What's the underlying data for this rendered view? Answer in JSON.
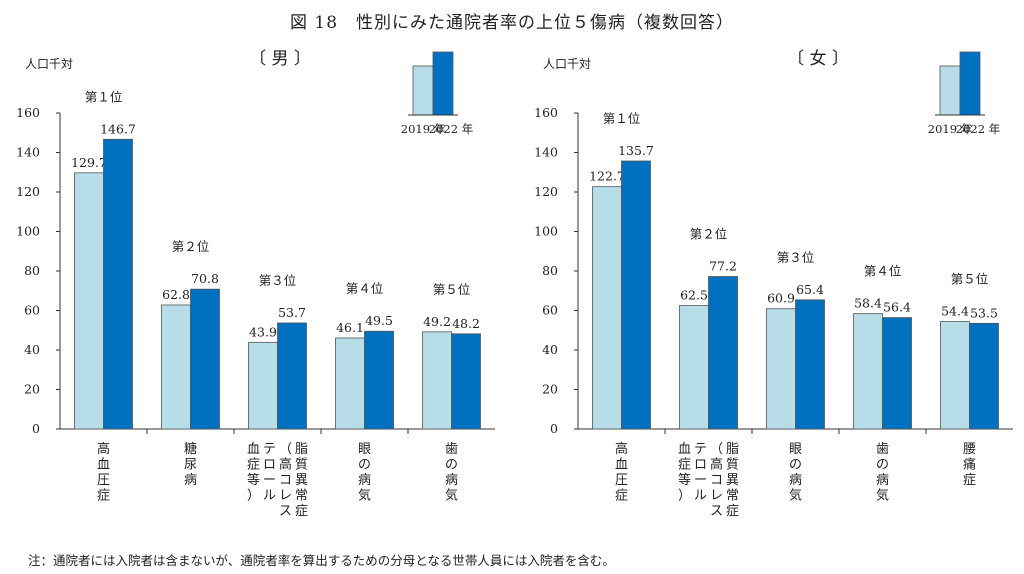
{
  "figure_title": "図 18　性別にみた通院者率の上位５傷病（複数回答）",
  "note": "注：通院者には入院者は含まないが、通院者率を算出するための分母となる世帯人員には入院者を含む。",
  "legend": {
    "series": [
      "2019 年",
      "2022 年"
    ]
  },
  "colors": {
    "y2019": "#b7dde8",
    "y2022": "#0070c0",
    "edge": "#555555"
  },
  "chart_data": [
    {
      "type": "bar",
      "title": "〔 男 〕",
      "ylabel": "人口千対",
      "ylim": [
        0,
        160
      ],
      "yticks": [
        0,
        20,
        40,
        60,
        80,
        100,
        120,
        140,
        160
      ],
      "categories": [
        "高血圧症",
        "糖尿病",
        "脂質異常症（高コレステロール血症等）",
        "眼の病気",
        "歯の病気"
      ],
      "category_label_lines": [
        [
          "高血圧症"
        ],
        [
          "糖尿病"
        ],
        [
          "脂質異常症",
          "（高コレス",
          "テロール",
          "血症等）"
        ],
        [
          "眼の病気"
        ],
        [
          "歯の病気"
        ]
      ],
      "ranks": [
        "第１位",
        "第２位",
        "第３位",
        "第４位",
        "第５位"
      ],
      "series": [
        {
          "name": "2019 年",
          "values": [
            129.7,
            62.8,
            43.9,
            46.1,
            49.2
          ]
        },
        {
          "name": "2022 年",
          "values": [
            146.7,
            70.8,
            53.7,
            49.5,
            48.2
          ]
        }
      ]
    },
    {
      "type": "bar",
      "title": "〔 女 〕",
      "ylabel": "人口千対",
      "ylim": [
        0,
        160
      ],
      "yticks": [
        0,
        20,
        40,
        60,
        80,
        100,
        120,
        140,
        160
      ],
      "categories": [
        "高血圧症",
        "脂質異常症（高コレステロール血症等）",
        "眼の病気",
        "歯の病気",
        "腰痛症"
      ],
      "category_label_lines": [
        [
          "高血圧症"
        ],
        [
          "脂質異常症",
          "（高コレス",
          "テロール",
          "血症等）"
        ],
        [
          "眼の病気"
        ],
        [
          "歯の病気"
        ],
        [
          "腰痛症"
        ]
      ],
      "ranks": [
        "第１位",
        "第２位",
        "第３位",
        "第４位",
        "第５位"
      ],
      "series": [
        {
          "name": "2019 年",
          "values": [
            122.7,
            62.5,
            60.9,
            58.4,
            54.4
          ]
        },
        {
          "name": "2022 年",
          "values": [
            135.7,
            77.2,
            65.4,
            56.4,
            53.5
          ]
        }
      ]
    }
  ]
}
